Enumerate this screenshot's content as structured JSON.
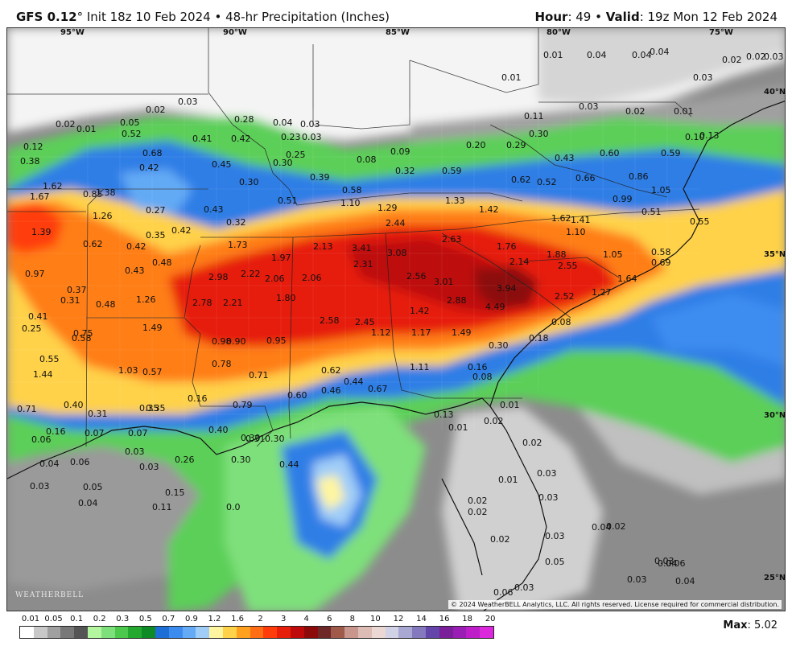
{
  "header": {
    "model": "GFS 0.12",
    "deg": "°",
    "init": " Init 18z 10 Feb 2024",
    "bullet": " • ",
    "product": "48-hr Precipitation (Inches)",
    "hour_label": "Hour",
    "hour_value": ": 49",
    "valid_label": "Valid",
    "valid_value": ": 19z Mon 12 Feb 2024"
  },
  "longitudes": [
    "95°W",
    "90°W",
    "85°W",
    "80°W",
    "75°W"
  ],
  "latitudes": [
    "40°N",
    "35°N",
    "30°N",
    "25°N"
  ],
  "copyright": "© 2024 WeatherBELL Analytics, LLC. All rights reserved. License required for commercial distribution.",
  "logo": "WEATHERBELL",
  "legend": {
    "ticks": [
      "0.01",
      "0.05",
      "0.1",
      "0.2",
      "0.3",
      "0.5",
      "0.7",
      "0.9",
      "1.2",
      "1.6",
      "2",
      "3",
      "4",
      "6",
      "8",
      "10",
      "12",
      "14",
      "16",
      "18",
      "20"
    ],
    "colors": [
      "#ffffff",
      "#c8c8c8",
      "#a0a0a0",
      "#787878",
      "#555555",
      "#b4f5a0",
      "#7ee07a",
      "#4cc84c",
      "#24a830",
      "#0e8a26",
      "#1e6ed8",
      "#3c8cf0",
      "#64aaf5",
      "#a0cdf8",
      "#fff5a0",
      "#ffd24a",
      "#ffa01e",
      "#ff6e14",
      "#ff3c0a",
      "#e61e0a",
      "#be0a0a",
      "#8c0a0a",
      "#6e2828",
      "#a05a4a",
      "#c8968c",
      "#dcbcb4",
      "#ebd8d4",
      "#d2d2e6",
      "#a8a8d2",
      "#8478be",
      "#6446aa",
      "#7a1e9a",
      "#9a1eb4",
      "#be1ec8",
      "#dc28dc"
    ],
    "max_label": "Max",
    "max_value": ": 5.02"
  },
  "labels": [
    {
      "t": "0.01"
    },
    {
      "t": "0.04"
    },
    {
      "t": "0.04"
    },
    {
      "t": "0.04"
    },
    {
      "t": "0.02"
    },
    {
      "t": "0.02"
    },
    {
      "t": "0.03"
    },
    {
      "t": "0.03"
    },
    {
      "t": "0.01"
    },
    {
      "t": "0.02"
    },
    {
      "t": "0.01"
    },
    {
      "t": "0.02"
    },
    {
      "t": "0.03"
    },
    {
      "t": "0.05"
    },
    {
      "t": "0.28"
    },
    {
      "t": "0.04"
    },
    {
      "t": "0.03"
    },
    {
      "t": "0.03"
    },
    {
      "t": "0.03"
    },
    {
      "t": "0.02"
    },
    {
      "t": "0.01"
    },
    {
      "t": "0.12"
    },
    {
      "t": "0.52"
    },
    {
      "t": "0.41"
    },
    {
      "t": "0.42"
    },
    {
      "t": "0.23"
    },
    {
      "t": "0.11"
    },
    {
      "t": "0.10"
    },
    {
      "t": "0.38"
    },
    {
      "t": "0.68"
    },
    {
      "t": "0.25"
    },
    {
      "t": "0.20"
    },
    {
      "t": "0.29"
    },
    {
      "t": "0.30"
    },
    {
      "t": "0.60"
    },
    {
      "t": "0.59"
    },
    {
      "t": "0.42"
    },
    {
      "t": "0.45"
    },
    {
      "t": "0.30"
    },
    {
      "t": "0.08"
    },
    {
      "t": "0.09"
    },
    {
      "t": "0.43"
    },
    {
      "t": "0.13"
    },
    {
      "t": "1.62"
    },
    {
      "t": "0.39"
    },
    {
      "t": "0.32"
    },
    {
      "t": "0.59"
    },
    {
      "t": "0.62"
    },
    {
      "t": "0.52"
    },
    {
      "t": "0.66"
    },
    {
      "t": "0.86"
    },
    {
      "t": "1.67"
    },
    {
      "t": "0.85"
    },
    {
      "t": "1.38"
    },
    {
      "t": "0.30"
    },
    {
      "t": "0.58"
    },
    {
      "t": "1.05"
    },
    {
      "t": "0.51"
    },
    {
      "t": "1.10"
    },
    {
      "t": "1.33"
    },
    {
      "t": "0.99"
    },
    {
      "t": "1.26"
    },
    {
      "t": "0.27"
    },
    {
      "t": "0.43"
    },
    {
      "t": "1.29"
    },
    {
      "t": "1.42"
    },
    {
      "t": "0.51"
    },
    {
      "t": "0.32"
    },
    {
      "t": "2.44"
    },
    {
      "t": "1.62"
    },
    {
      "t": "1.41"
    },
    {
      "t": "0.55"
    },
    {
      "t": "1.39"
    },
    {
      "t": "0.35"
    },
    {
      "t": "0.42"
    },
    {
      "t": "1.10"
    },
    {
      "t": "0.62"
    },
    {
      "t": "0.42"
    },
    {
      "t": "1.73"
    },
    {
      "t": "2.63"
    },
    {
      "t": "2.13"
    },
    {
      "t": "3.41"
    },
    {
      "t": "1.76"
    },
    {
      "t": "0.48"
    },
    {
      "t": "1.97"
    },
    {
      "t": "3.08"
    },
    {
      "t": "1.88"
    },
    {
      "t": "0.58"
    },
    {
      "t": "1.05"
    },
    {
      "t": "0.97"
    },
    {
      "t": "0.43"
    },
    {
      "t": "2.31"
    },
    {
      "t": "2.14"
    },
    {
      "t": "2.55"
    },
    {
      "t": "0.69"
    },
    {
      "t": "2.98"
    },
    {
      "t": "2.22"
    },
    {
      "t": "2.06"
    },
    {
      "t": "2.06"
    },
    {
      "t": "2.56"
    },
    {
      "t": "3.01"
    },
    {
      "t": "1.64"
    },
    {
      "t": "0.37"
    },
    {
      "t": "3.94"
    },
    {
      "t": "1.27"
    },
    {
      "t": "0.31"
    },
    {
      "t": "0.48"
    },
    {
      "t": "1.26"
    },
    {
      "t": "2.78"
    },
    {
      "t": "2.21"
    },
    {
      "t": "1.80"
    },
    {
      "t": "2.88"
    },
    {
      "t": "2.52"
    },
    {
      "t": "4.49"
    },
    {
      "t": "0.41"
    },
    {
      "t": "1.42"
    },
    {
      "t": "0.25"
    },
    {
      "t": "1.49"
    },
    {
      "t": "2.58"
    },
    {
      "t": "2.45"
    },
    {
      "t": "0.08"
    },
    {
      "t": "0.75"
    },
    {
      "t": "1.12"
    },
    {
      "t": "1.17"
    },
    {
      "t": "1.49"
    },
    {
      "t": "0.58"
    },
    {
      "t": "0.98"
    },
    {
      "t": "0.90"
    },
    {
      "t": "0.95"
    },
    {
      "t": "0.18"
    },
    {
      "t": "0.30"
    },
    {
      "t": "0.55"
    },
    {
      "t": "0.78"
    },
    {
      "t": "1.11"
    },
    {
      "t": "0.16"
    },
    {
      "t": "1.03"
    },
    {
      "t": "0.57"
    },
    {
      "t": "0.71"
    },
    {
      "t": "0.62"
    },
    {
      "t": "0.08"
    },
    {
      "t": "1.44"
    },
    {
      "t": "0.44"
    },
    {
      "t": "0.46"
    },
    {
      "t": "0.67"
    },
    {
      "t": "0.16"
    },
    {
      "t": "0.35"
    },
    {
      "t": "0.60"
    },
    {
      "t": "0.40"
    },
    {
      "t": "0.79"
    },
    {
      "t": "0.01"
    },
    {
      "t": "0.71"
    },
    {
      "t": "0.31"
    },
    {
      "t": "0.35"
    },
    {
      "t": "0.13"
    },
    {
      "t": "0.02"
    },
    {
      "t": "0.40"
    },
    {
      "t": "0.30"
    },
    {
      "t": "0.01"
    },
    {
      "t": "0.16"
    },
    {
      "t": "0.07"
    },
    {
      "t": "0.07"
    },
    {
      "t": "0.31"
    },
    {
      "t": "0.30"
    },
    {
      "t": "0.02"
    },
    {
      "t": "0.06"
    },
    {
      "t": "0.03"
    },
    {
      "t": "0.26"
    },
    {
      "t": "0.30"
    },
    {
      "t": "0.44"
    },
    {
      "t": "0.03"
    },
    {
      "t": "0.04"
    },
    {
      "t": "0.06"
    },
    {
      "t": "0.03"
    },
    {
      "t": "0.03"
    },
    {
      "t": "0.01"
    },
    {
      "t": "0.05"
    },
    {
      "t": "0.15"
    },
    {
      "t": "0.02"
    },
    {
      "t": "0.03"
    },
    {
      "t": "0.04"
    },
    {
      "t": "0.11"
    },
    {
      "t": "0.0"
    },
    {
      "t": "0.02"
    },
    {
      "t": "0.04"
    },
    {
      "t": "0.02"
    },
    {
      "t": "0.02"
    },
    {
      "t": "0.03"
    },
    {
      "t": "0.05"
    },
    {
      "t": "0.03"
    },
    {
      "t": "0.06"
    },
    {
      "t": "0.03"
    },
    {
      "t": "0.03"
    },
    {
      "t": "0.04"
    },
    {
      "t": "0.04"
    },
    {
      "t": "0.06"
    }
  ]
}
